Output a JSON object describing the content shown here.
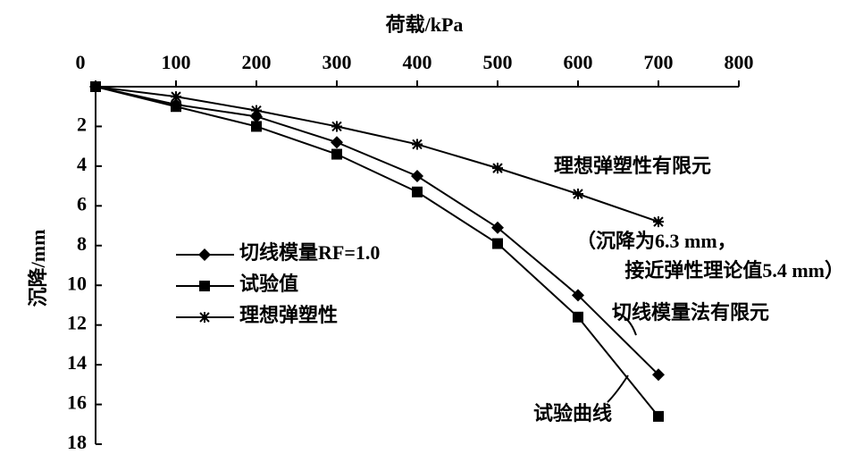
{
  "chart_data": {
    "type": "line",
    "x_label": "荷载/kPa",
    "y_label": "沉降/mm",
    "x": [
      0,
      100,
      200,
      300,
      400,
      500,
      600,
      700
    ],
    "series": [
      {
        "name": "切线模量RF=1.0",
        "color": "#000000",
        "marker": "diamond",
        "values": [
          0,
          0.9,
          1.5,
          2.8,
          4.5,
          7.1,
          10.5,
          14.5
        ]
      },
      {
        "name": "试验值",
        "color": "#000000",
        "marker": "square",
        "values": [
          0,
          1.0,
          2.0,
          3.4,
          5.3,
          7.9,
          11.6,
          16.6
        ]
      },
      {
        "name": "理想弹塑性",
        "color": "#000000",
        "marker": "star",
        "values": [
          0,
          0.5,
          1.2,
          2.0,
          2.9,
          4.1,
          5.4,
          6.8
        ]
      }
    ],
    "xlim": [
      0,
      800
    ],
    "xticks": [
      0,
      100,
      200,
      300,
      400,
      500,
      600,
      700,
      800
    ],
    "ylim": [
      0,
      18
    ],
    "yticks": [
      2,
      4,
      6,
      8,
      10,
      12,
      14,
      16,
      18
    ],
    "y_reversed": true,
    "x_axis_position": "top",
    "annotations": [
      "理想弹塑性有限元",
      "（沉降为6.3 mm，",
      "接近弹性理论值5.4 mm）",
      "切线模量法有限元",
      "试验曲线"
    ]
  }
}
